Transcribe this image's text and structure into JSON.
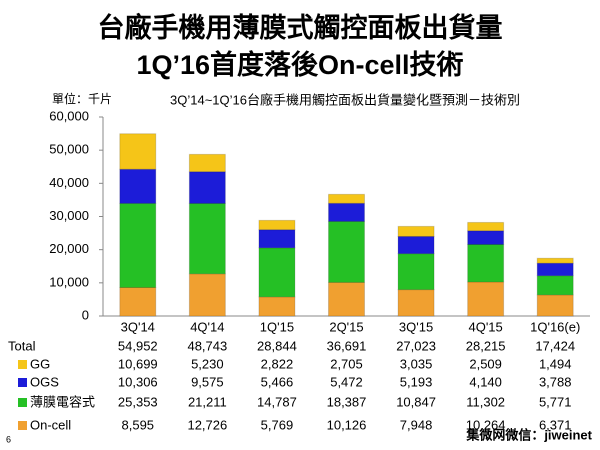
{
  "chart_data": {
    "type": "stacked-bar",
    "title": "台廠手機用薄膜式觸控面板出貨量",
    "subtitle": "1Q’16首度落後On-cell技術",
    "chart_title": "3Q’14~1Q’16台廠手機用觸控面板出貨量變化暨預測－技術別",
    "unit_label": "單位：千片",
    "categories": [
      "3Q'14",
      "4Q'14",
      "1Q'15",
      "2Q'15",
      "3Q'15",
      "4Q'15",
      "1Q'16(e)"
    ],
    "ylim": [
      0,
      60000
    ],
    "yticks": [
      0,
      {
        "value": 10000,
        "label": "10,000"
      },
      {
        "value": 20000,
        "label": "20,000"
      },
      {
        "value": 30000,
        "label": "30,000"
      },
      {
        "value": 40000,
        "label": "40,000"
      },
      {
        "value": 50000,
        "label": "50,000"
      },
      {
        "value": 60000,
        "label": "60,000"
      }
    ],
    "grid": false,
    "totals": {
      "name": "Total",
      "values": [
        54952,
        48743,
        28844,
        36691,
        27023,
        28215,
        17424
      ],
      "value_labels": [
        "54,952",
        "48,743",
        "28,844",
        "36,691",
        "27,023",
        "28,215",
        "17,424"
      ]
    },
    "series": [
      {
        "name": "GG",
        "color": "#f5c518",
        "values": [
          10699,
          5230,
          2822,
          2705,
          3035,
          2509,
          1494
        ],
        "value_labels": [
          "10,699",
          "5,230",
          "2,822",
          "2,705",
          "3,035",
          "2,509",
          "1,494"
        ]
      },
      {
        "name": "OGS",
        "color": "#1c1cd8",
        "values": [
          10306,
          9575,
          5466,
          5472,
          5193,
          4140,
          3788
        ],
        "value_labels": [
          "10,306",
          "9,575",
          "5,466",
          "5,472",
          "5,193",
          "4,140",
          "3,788"
        ]
      },
      {
        "name": "薄膜電容式",
        "color": "#25c025",
        "values": [
          25353,
          21211,
          14787,
          18387,
          10847,
          11302,
          5771
        ],
        "value_labels": [
          "25,353",
          "21,211",
          "14,787",
          "18,387",
          "10,847",
          "11,302",
          "5,771"
        ]
      },
      {
        "name": "On-cell",
        "color": "#f0a030",
        "values": [
          8595,
          12726,
          5769,
          10126,
          7948,
          10264,
          6371
        ],
        "value_labels": [
          "8,595",
          "12,726",
          "5,769",
          "10,126",
          "7,948",
          "10,264",
          "6,371"
        ]
      }
    ],
    "footer": "集微网微信：jiweinet",
    "page_number": "6"
  }
}
